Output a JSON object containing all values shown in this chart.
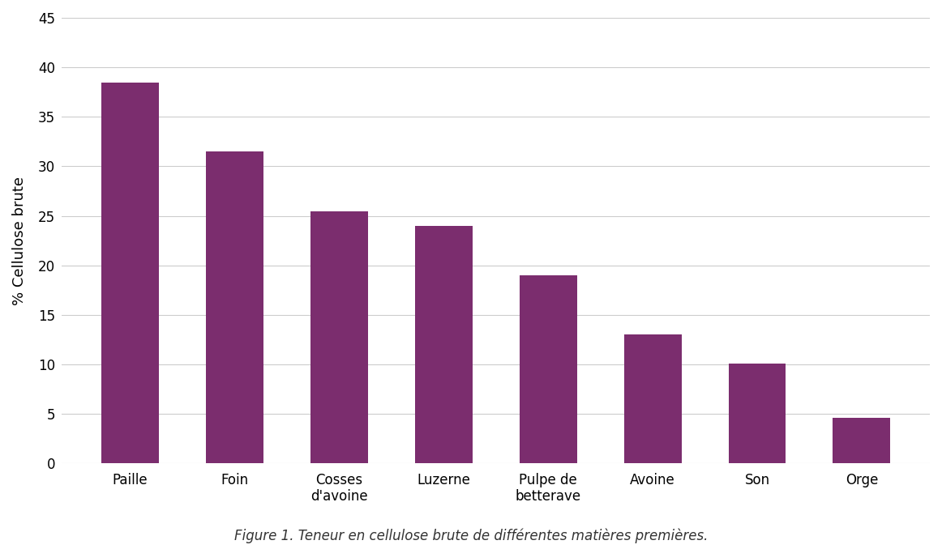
{
  "categories": [
    "Paille",
    "Foin",
    "Cosses\nd'avoine",
    "Luzerne",
    "Pulpe de\nbetterave",
    "Avoine",
    "Son",
    "Orge"
  ],
  "values": [
    38.5,
    31.5,
    25.5,
    24.0,
    19.0,
    13.0,
    10.1,
    4.6
  ],
  "bar_color": "#7B2D6E",
  "ylabel": "% Cellulose brute",
  "ylim": [
    0,
    45
  ],
  "yticks": [
    0,
    5,
    10,
    15,
    20,
    25,
    30,
    35,
    40,
    45
  ],
  "caption": "Figure 1. Teneur en cellulose brute de différentes matières premières.",
  "background_color": "#ffffff",
  "grid_color": "#cccccc",
  "bar_width": 0.55
}
